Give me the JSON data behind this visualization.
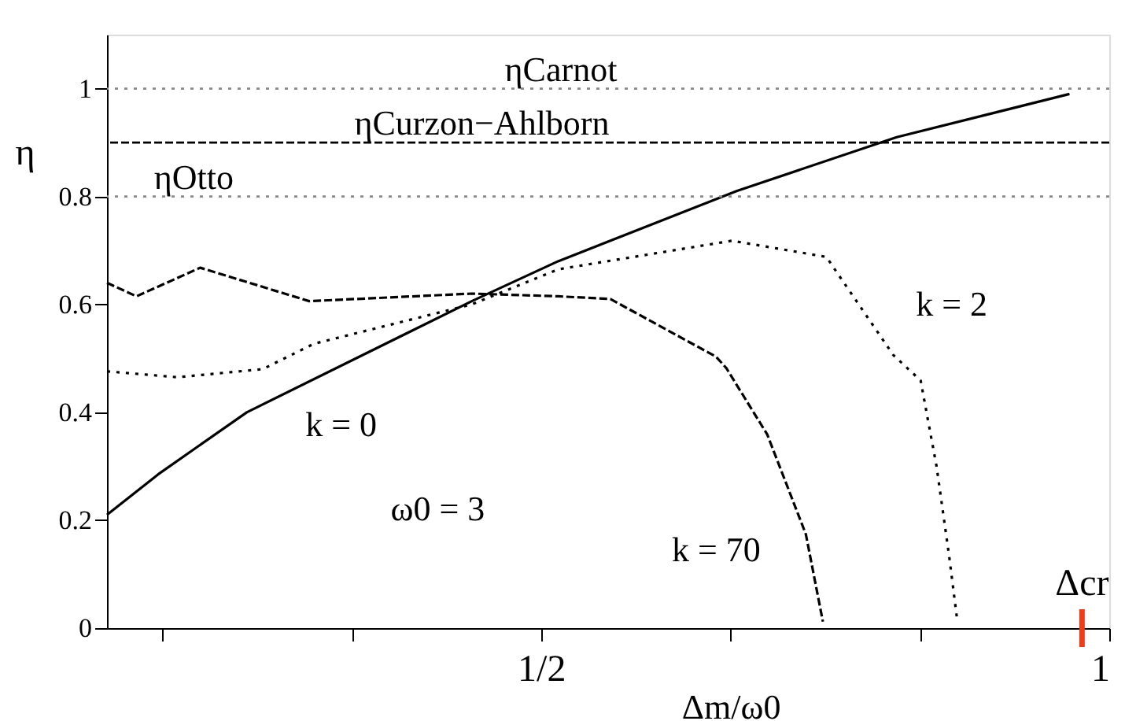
{
  "chart_data": {
    "type": "line",
    "xlabel": "Δm/ω0",
    "ylabel": "η",
    "xlim": [
      0.118,
      1
    ],
    "ylim": [
      0,
      1.1
    ],
    "xticks": [
      {
        "value": 0.16667,
        "label": null
      },
      {
        "value": 0.33333,
        "label": null
      },
      {
        "value": 0.5,
        "label": "1/2"
      },
      {
        "value": 0.66667,
        "label": null
      },
      {
        "value": 0.83333,
        "label": null
      },
      1
    ],
    "yticks": [
      0,
      0.2,
      0.4,
      0.6,
      0.8,
      1
    ],
    "grid": false,
    "marker": "none",
    "series": [
      {
        "name": "k = 0",
        "color": "#000000",
        "line_style": "solid",
        "x": [
          0.118,
          0.163,
          0.241,
          0.439,
          0.515,
          0.672,
          0.813,
          0.965
        ],
        "values": [
          0.21,
          0.285,
          0.4,
          0.606,
          0.68,
          0.81,
          0.91,
          0.99
        ]
      },
      {
        "name": "k = 2",
        "color": "#000000",
        "line_style": "dotted",
        "x": [
          0.118,
          0.18,
          0.255,
          0.3,
          0.439,
          0.515,
          0.668,
          0.751,
          0.81,
          0.834,
          0.848,
          0.859,
          0.866
        ],
        "values": [
          0.476,
          0.465,
          0.48,
          0.527,
          0.6,
          0.665,
          0.718,
          0.688,
          0.506,
          0.459,
          0.3,
          0.135,
          0.018
        ]
      },
      {
        "name": "k = 70",
        "color": "#000000",
        "line_style": "dashed",
        "x": [
          0.118,
          0.144,
          0.2,
          0.296,
          0.439,
          0.515,
          0.561,
          0.654,
          0.663,
          0.699,
          0.733,
          0.748
        ],
        "values": [
          0.64,
          0.615,
          0.668,
          0.606,
          0.62,
          0.615,
          0.61,
          0.503,
          0.482,
          0.359,
          0.174,
          0.012
        ]
      }
    ],
    "ref_lines": [
      {
        "axis": "y",
        "value": 1,
        "label": "ηCarnot",
        "color": "#888888",
        "line_style": "dotted"
      },
      {
        "axis": "y",
        "value": 0.9,
        "label": "ηCurzon−Ahlborn",
        "color": "#000000",
        "line_style": "dashed"
      },
      {
        "axis": "y",
        "value": 0.8,
        "label": "ηOtto",
        "color": "#888888",
        "line_style": "dotted"
      },
      {
        "axis": "x",
        "value": 0.976,
        "label": "Δcr",
        "color": "#e8401c",
        "line_style": "solid"
      }
    ],
    "annotations": [
      "ω0 = 3"
    ]
  }
}
